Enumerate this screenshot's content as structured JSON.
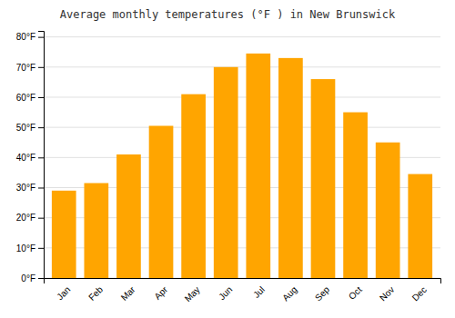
{
  "chart_data": {
    "type": "bar",
    "title": "Average monthly temperatures (°F ) in New Brunswick",
    "categories": [
      "Jan",
      "Feb",
      "Mar",
      "Apr",
      "May",
      "Jun",
      "Jul",
      "Aug",
      "Sep",
      "Oct",
      "Nov",
      "Dec"
    ],
    "values": [
      29,
      31.5,
      41,
      50.5,
      61,
      70,
      74.5,
      73,
      66,
      55,
      45,
      34.5
    ],
    "color": "#FFA500",
    "ylim": [
      0,
      82
    ],
    "yticks": [
      {
        "value": 0,
        "label": "0°F"
      },
      {
        "value": 10,
        "label": "10°F"
      },
      {
        "value": 20,
        "label": "20°F"
      },
      {
        "value": 30,
        "label": "30°F"
      },
      {
        "value": 40,
        "label": "40°F"
      },
      {
        "value": 50,
        "label": "50°F"
      },
      {
        "value": 60,
        "label": "60°F"
      },
      {
        "value": 70,
        "label": "70°F"
      },
      {
        "value": 80,
        "label": "80°F"
      }
    ],
    "grid": true
  }
}
